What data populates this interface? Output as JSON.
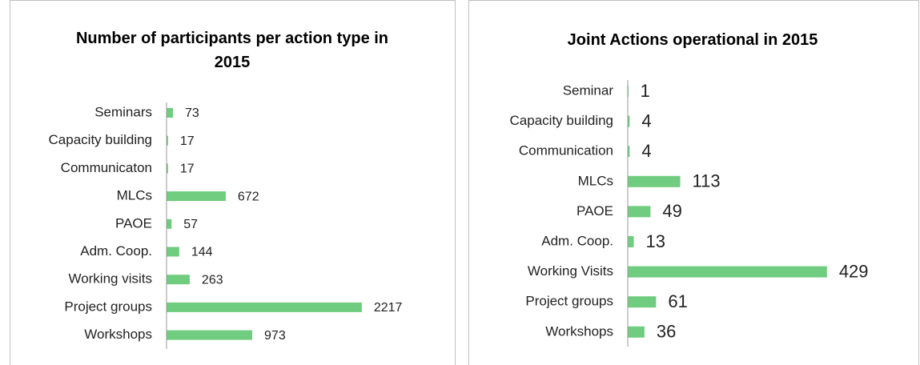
{
  "chart_data": [
    {
      "type": "barh",
      "title": "Number of participants per action type in 2015",
      "categories": [
        "Seminars",
        "Capacity building",
        "Communicaton",
        "MLCs",
        "PAOE",
        "Adm. Coop.",
        "Working visits",
        "Project groups",
        "Workshops"
      ],
      "values": [
        73,
        17,
        17,
        672,
        57,
        144,
        263,
        2217,
        973
      ],
      "color": "#70cc7e",
      "xlim": [
        0,
        2500
      ]
    },
    {
      "type": "barh",
      "title": "Joint Actions operational in 2015",
      "categories": [
        "Seminar",
        "Capacity building",
        "Communication",
        "MLCs",
        "PAOE",
        "Adm. Coop.",
        "Working Visits",
        "Project groups",
        "Workshops"
      ],
      "values": [
        1,
        4,
        4,
        113,
        49,
        13,
        429,
        61,
        36
      ],
      "color": "#70cc7e",
      "xlim": [
        0,
        500
      ]
    }
  ]
}
